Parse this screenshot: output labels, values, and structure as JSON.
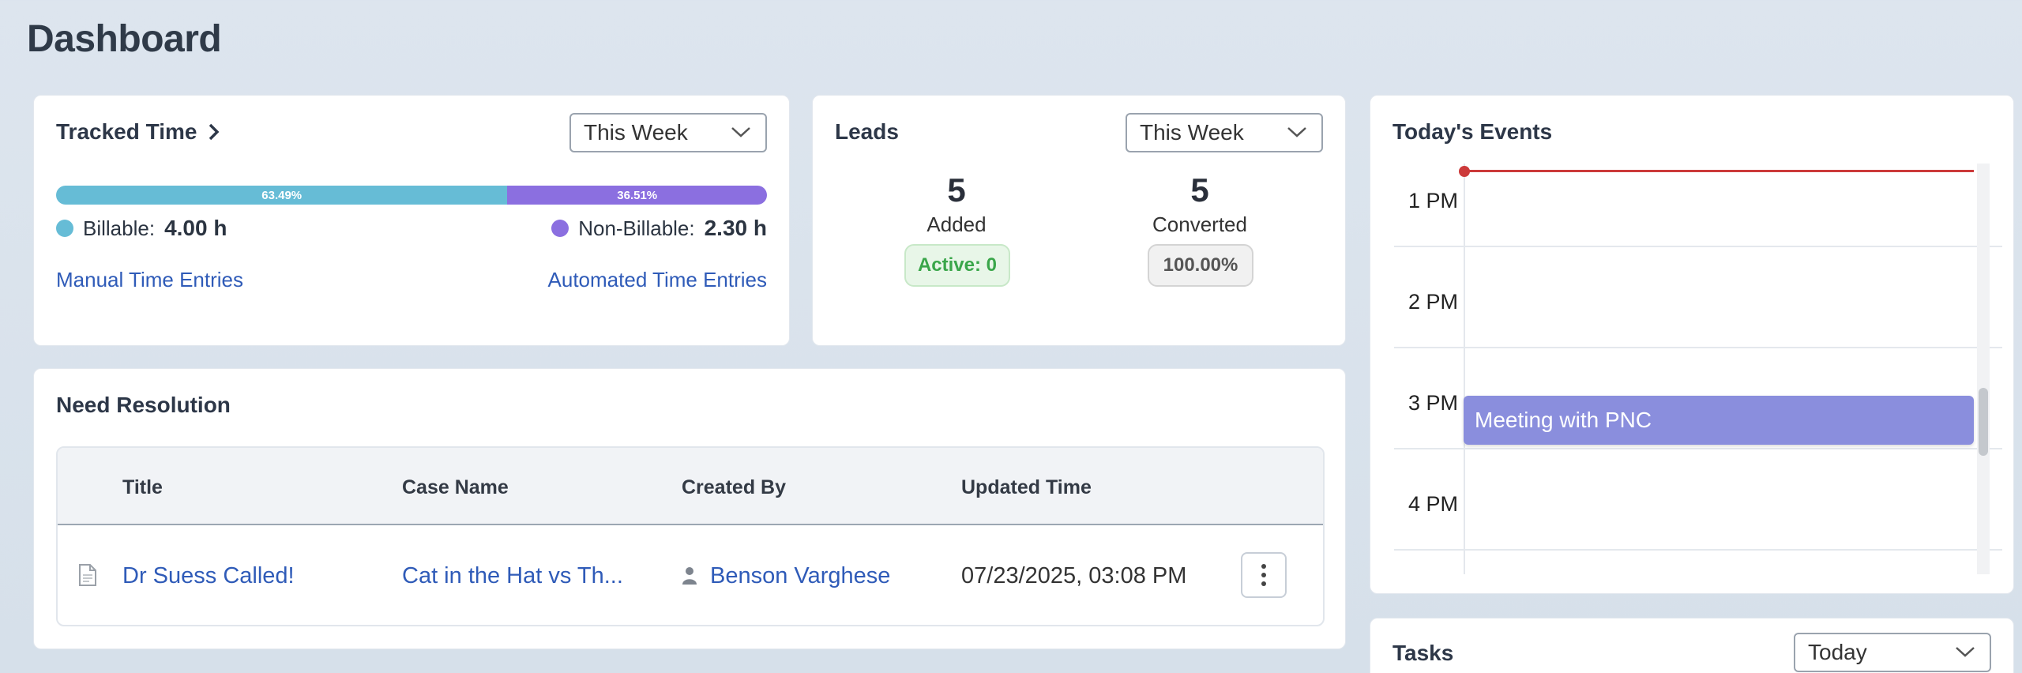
{
  "page": {
    "title": "Dashboard"
  },
  "tracked_time": {
    "title": "Tracked Time",
    "range": "This Week",
    "billable_pct": 63.49,
    "billable_pct_label": "63.49%",
    "non_billable_pct_label": "36.51%",
    "billable_label": "Billable:",
    "billable_value": "4.00 h",
    "non_billable_label": "Non-Billable:",
    "non_billable_value": "2.30 h",
    "manual_link": "Manual Time Entries",
    "automated_link": "Automated Time Entries",
    "colors": {
      "billable": "#66bcd6",
      "non_billable": "#8b6fe0"
    }
  },
  "leads": {
    "title": "Leads",
    "range": "This Week",
    "added_count": "5",
    "added_label": "Added",
    "active_label": "Active: 0",
    "converted_count": "5",
    "converted_label": "Converted",
    "converted_pct": "100.00%"
  },
  "need_resolution": {
    "title": "Need Resolution",
    "columns": [
      "Title",
      "Case Name",
      "Created By",
      "Updated Time"
    ],
    "rows": [
      {
        "title": "Dr Suess Called!",
        "case_name": "Cat in the Hat vs Th...",
        "created_by": "Benson Varghese",
        "updated_time": "07/23/2025, 03:08 PM",
        "icons": [
          "document-icon",
          "person-icon",
          "kebab-menu-icon"
        ]
      }
    ]
  },
  "todays_events": {
    "title": "Today's Events",
    "hours": [
      "1 PM",
      "2 PM",
      "3 PM",
      "4 PM"
    ],
    "events": [
      {
        "title": "Meeting with PNC",
        "color": "#8a8edd"
      }
    ],
    "now_line_color": "#cc3a3a"
  },
  "tasks": {
    "title": "Tasks",
    "range": "Today"
  }
}
